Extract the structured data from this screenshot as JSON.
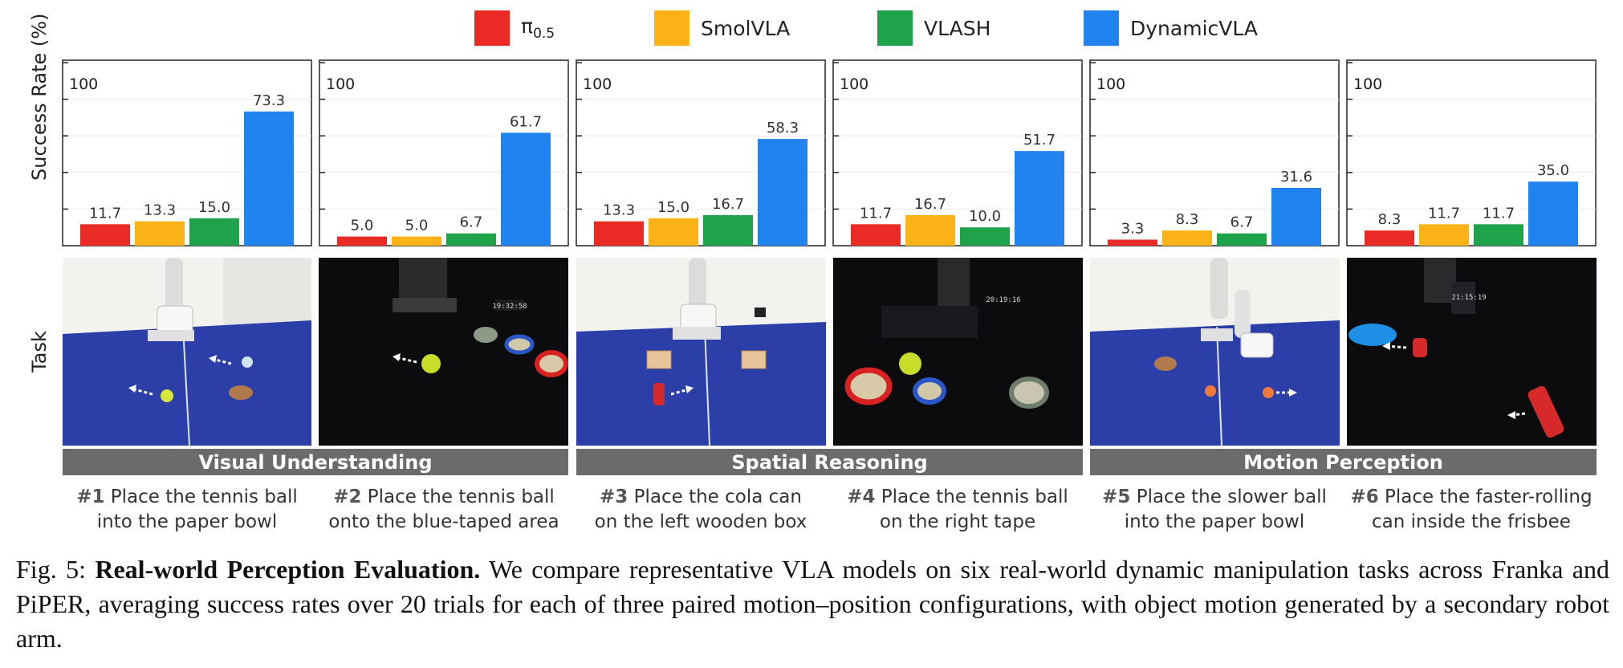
{
  "legend": [
    {
      "name": "π",
      "sub": "0.5",
      "color": "#ea2a24"
    },
    {
      "name": "SmolVLA",
      "sub": "",
      "color": "#fbb217"
    },
    {
      "name": "VLASH",
      "sub": "",
      "color": "#1ea24a"
    },
    {
      "name": "DynamicVLA",
      "sub": "",
      "color": "#2184ee"
    }
  ],
  "axis": {
    "ylabel": "Success Rate (%)",
    "task_label": "Task",
    "top_tick": "100"
  },
  "chart_data": {
    "type": "bar",
    "ylabel": "Success Rate (%)",
    "ylim": [
      0,
      100
    ],
    "series_names": [
      "π0.5",
      "SmolVLA",
      "VLASH",
      "DynamicVLA"
    ],
    "panels": [
      {
        "task": "#1",
        "values": [
          11.7,
          13.3,
          15.0,
          73.3
        ],
        "labels": [
          "11.7",
          "13.3",
          "15.0",
          "73.3"
        ]
      },
      {
        "task": "#2",
        "values": [
          5.0,
          5.0,
          6.7,
          61.7
        ],
        "labels": [
          "5.0",
          "5.0",
          "6.7",
          "61.7"
        ]
      },
      {
        "task": "#3",
        "values": [
          13.3,
          15.0,
          16.7,
          58.3
        ],
        "labels": [
          "13.3",
          "15.0",
          "16.7",
          "58.3"
        ]
      },
      {
        "task": "#4",
        "values": [
          11.7,
          16.7,
          10.0,
          51.7
        ],
        "labels": [
          "11.7",
          "16.7",
          "10.0",
          "51.7"
        ]
      },
      {
        "task": "#5",
        "values": [
          3.3,
          8.3,
          6.7,
          31.6
        ],
        "labels": [
          "3.3",
          "8.3",
          "6.7",
          "31.6"
        ]
      },
      {
        "task": "#6",
        "values": [
          8.3,
          11.7,
          11.7,
          35.0
        ],
        "labels": [
          "8.3",
          "11.7",
          "11.7",
          "35.0"
        ]
      }
    ]
  },
  "categories": [
    "Visual Understanding",
    "Spatial Reasoning",
    "Motion Perception"
  ],
  "tasks": [
    {
      "num": "#1",
      "line1": "Place the tennis ball",
      "line2": "into the paper bowl"
    },
    {
      "num": "#2",
      "line1": "Place the tennis ball",
      "line2": "onto the blue-taped area"
    },
    {
      "num": "#3",
      "line1": "Place the cola can",
      "line2": "on the left wooden box"
    },
    {
      "num": "#4",
      "line1": "Place the tennis ball",
      "line2": "on the right tape"
    },
    {
      "num": "#5",
      "line1": "Place the slower ball",
      "line2": "into the paper bowl"
    },
    {
      "num": "#6",
      "line1": "Place the faster-rolling",
      "line2": "can inside the frisbee"
    }
  ],
  "photo_text": {
    "clock2": "19:32:58",
    "clock4": "20:19:16",
    "clock6": "21:15:19"
  },
  "caption": {
    "prefix": "Fig. 5: ",
    "title": "Real-world Perception Evaluation.",
    "body": " We compare representative VLA models on six real-world dynamic manipulation tasks across Franka and PiPER, averaging success rates over 20 trials for each of three paired motion–position configurations, with object motion generated by a secondary robot arm."
  }
}
